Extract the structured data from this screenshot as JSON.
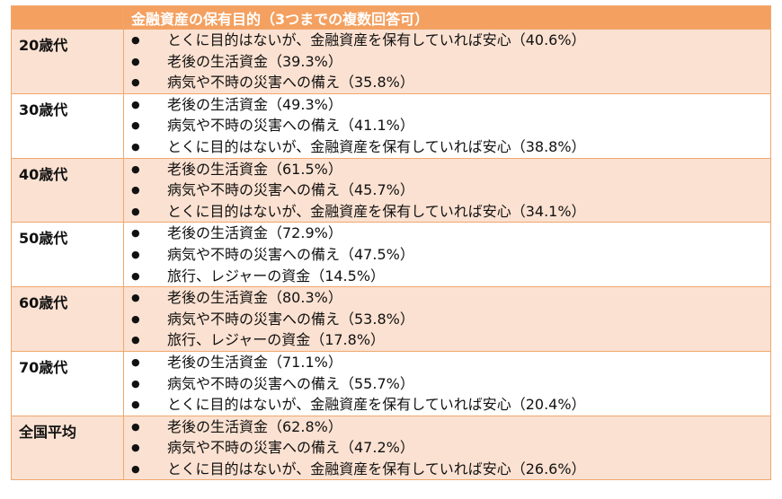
{
  "table": {
    "header": [
      "",
      "金融資産の保有目的（3つまでの複数回答可）"
    ],
    "rows": [
      {
        "label": "20歳代",
        "items": [
          "とくに目的はないが、金融資産を保有していれば安心（40.6%）",
          "老後の生活資金（39.3%）",
          "病気や不時の災害への備え（35.8%）"
        ]
      },
      {
        "label": "30歳代",
        "items": [
          "老後の生活資金（49.3%）",
          "病気や不時の災害への備え（41.1%）",
          "とくに目的はないが、金融資産を保有していれば安心（38.8%）"
        ]
      },
      {
        "label": "40歳代",
        "items": [
          "老後の生活資金（61.5%）",
          "病気や不時の災害への備え（45.7%）",
          "とくに目的はないが、金融資産を保有していれば安心（34.1%）"
        ]
      },
      {
        "label": "50歳代",
        "items": [
          "老後の生活資金（72.9%）",
          "病気や不時の災害への備え（47.5%）",
          "旅行、レジャーの資金（14.5%）"
        ]
      },
      {
        "label": "60歳代",
        "items": [
          "老後の生活資金（80.3%）",
          "病気や不時の災害への備え（53.8%）",
          "旅行、レジャーの資金（17.8%）"
        ]
      },
      {
        "label": "70歳代",
        "items": [
          "老後の生活資金（71.1%）",
          "病気や不時の災害への備え（55.7%）",
          "とくに目的はないが、金融資産を保有していれば安心（20.4%）"
        ]
      },
      {
        "label": "全国平均",
        "items": [
          "老後の生活資金（62.8%）",
          "病気や不時の災害への備え（47.2%）",
          "とくに目的はないが、金融資産を保有していれば安心（26.6%）"
        ]
      }
    ]
  }
}
